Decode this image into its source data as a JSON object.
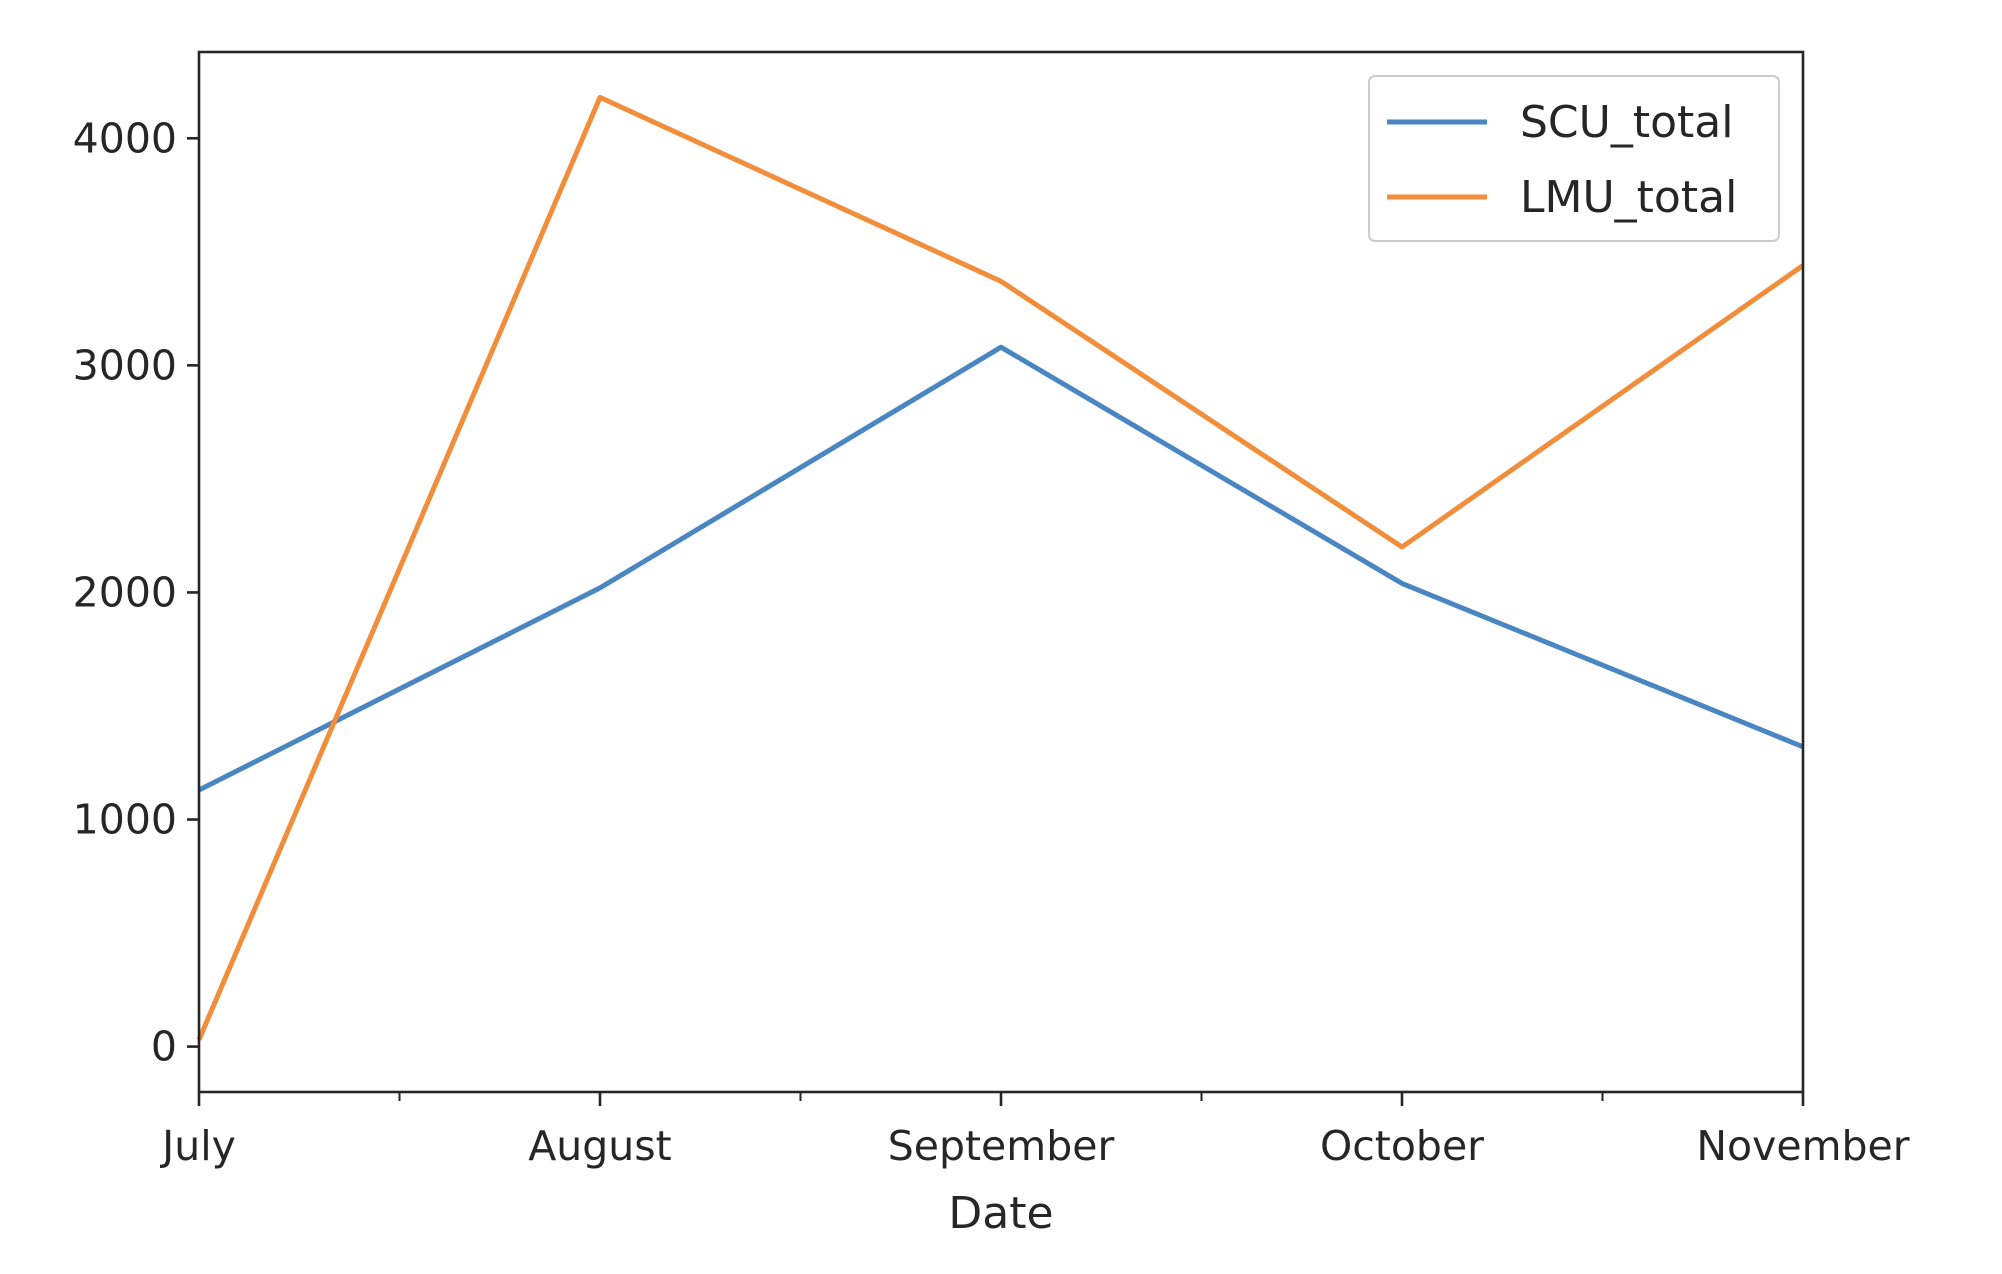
{
  "chart_data": {
    "type": "line",
    "title": "",
    "xlabel": "Date",
    "ylabel": "",
    "categories": [
      "July",
      "August",
      "September",
      "October",
      "November"
    ],
    "minor_ticks_between_categories": true,
    "ylim": [
      -200,
      4380
    ],
    "yticks": [
      0,
      1000,
      2000,
      3000,
      4000
    ],
    "series": [
      {
        "name": "SCU_total",
        "color": "#4a86c2",
        "values": [
          1130,
          2020,
          3080,
          2040,
          1320
        ]
      },
      {
        "name": "LMU_total",
        "color": "#f28e3b",
        "values": [
          30,
          4180,
          3370,
          2200,
          3440
        ]
      }
    ],
    "legend": {
      "position": "top-right"
    },
    "grid": false
  }
}
